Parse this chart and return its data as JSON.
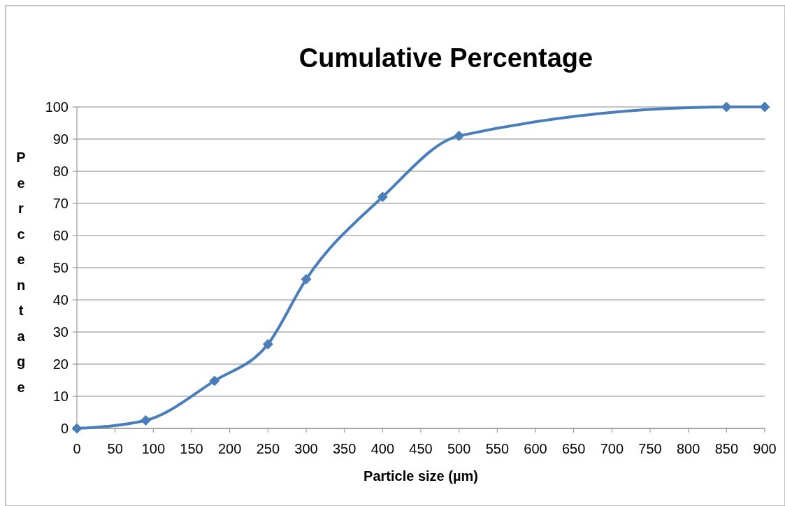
{
  "chart_data": {
    "type": "line",
    "title": "Cumulative Percentage",
    "xlabel": "Particle size (µm)",
    "ylabel": "Percentage",
    "x": [
      0,
      90,
      180,
      250,
      300,
      400,
      500,
      850,
      900
    ],
    "series": [
      {
        "color": "#4a7ebb",
        "values": [
          0,
          2.5,
          14.8,
          26.2,
          46.4,
          72,
          91,
          100,
          100
        ]
      }
    ],
    "xlim": [
      0,
      900
    ],
    "xticks": [
      0,
      50,
      100,
      150,
      200,
      250,
      300,
      350,
      400,
      450,
      500,
      550,
      600,
      650,
      700,
      750,
      800,
      850,
      900
    ],
    "ylim": [
      0,
      100
    ],
    "yticks": [
      0,
      10,
      20,
      30,
      40,
      50,
      60,
      70,
      80,
      90,
      100
    ],
    "grid": "y",
    "marker": "diamond",
    "line_style": "solid"
  }
}
